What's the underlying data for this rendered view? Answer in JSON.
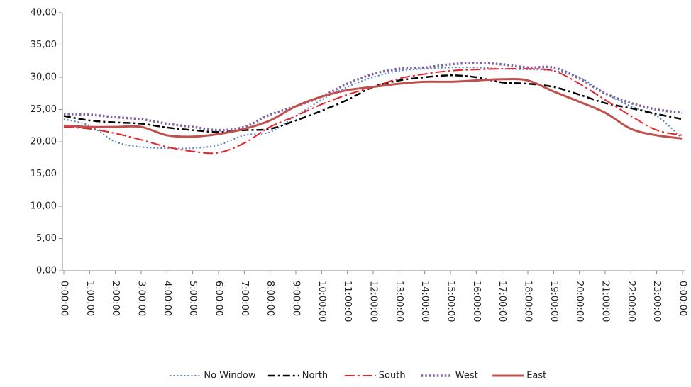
{
  "chart_data": {
    "type": "line",
    "categories": [
      "0:00:00",
      "1:00:00",
      "2:00:00",
      "3:00:00",
      "4:00:00",
      "5:00:00",
      "6:00:00",
      "7:00:00",
      "8:00:00",
      "9:00:00",
      "10:00:00",
      "11:00:00",
      "12:00:00",
      "13:00:00",
      "14:00:00",
      "15:00:00",
      "16:00:00",
      "17:00:00",
      "18:00:00",
      "19:00:00",
      "20:00:00",
      "21:00:00",
      "22:00:00",
      "23:00:00",
      "0:00:00"
    ],
    "series": [
      {
        "name": "No Window",
        "color": "#4f81bd",
        "line_style": "dotted",
        "values": [
          23.5,
          22.5,
          20,
          19.2,
          19,
          19,
          19.5,
          21,
          21.5,
          24,
          26.5,
          28.5,
          30,
          31,
          31.3,
          31.5,
          31.5,
          31.3,
          31.2,
          31,
          30,
          27.5,
          25.5,
          24,
          20.5
        ]
      },
      {
        "name": "North",
        "color": "#000000",
        "line_style": "dash-dot",
        "values": [
          24,
          23.3,
          23,
          22.8,
          22.2,
          21.8,
          21.5,
          21.8,
          22,
          23.3,
          24.8,
          26.5,
          28.5,
          29.5,
          30,
          30.3,
          30,
          29.2,
          29,
          28.5,
          27.3,
          26,
          25.2,
          24.3,
          23.5
        ]
      },
      {
        "name": "South",
        "color": "#e3242b",
        "line_style": "long-dash-dot",
        "values": [
          22.3,
          22,
          21.3,
          20.3,
          19.2,
          18.5,
          18.3,
          19.8,
          22.3,
          24,
          25.8,
          27.3,
          28.5,
          29.8,
          30.5,
          31,
          31.2,
          31.3,
          31.3,
          31,
          29,
          26.5,
          24,
          21.8,
          21
        ]
      },
      {
        "name": "West",
        "color": "#8064a2",
        "line_style": "heavy-dotted",
        "values": [
          24.3,
          24.2,
          23.8,
          23.5,
          22.8,
          22.3,
          21.8,
          22.3,
          24.2,
          25.5,
          27,
          29,
          30.5,
          31.3,
          31.5,
          32,
          32.2,
          32,
          31.5,
          31.5,
          29.8,
          27.5,
          26,
          25,
          24.5
        ]
      },
      {
        "name": "East",
        "color": "#c0504d",
        "line_style": "solid",
        "values": [
          22.5,
          22.3,
          22.3,
          22.3,
          21,
          20.8,
          21.2,
          22,
          23.3,
          25.5,
          27,
          28,
          28.5,
          29,
          29.3,
          29.3,
          29.5,
          29.7,
          29.5,
          27.8,
          26.2,
          24.5,
          22,
          21,
          20.5
        ]
      }
    ],
    "ylim": [
      0,
      40
    ],
    "yticks": [
      {
        "value": 0,
        "label": "0,00"
      },
      {
        "value": 5,
        "label": "5,00"
      },
      {
        "value": 10,
        "label": "10,00"
      },
      {
        "value": 15,
        "label": "15,00"
      },
      {
        "value": 20,
        "label": "20,00"
      },
      {
        "value": 25,
        "label": "25,00"
      },
      {
        "value": 30,
        "label": "30,00"
      },
      {
        "value": 35,
        "label": "35,00"
      },
      {
        "value": 40,
        "label": "40,00"
      }
    ],
    "grid": false,
    "legend": "bottom"
  }
}
